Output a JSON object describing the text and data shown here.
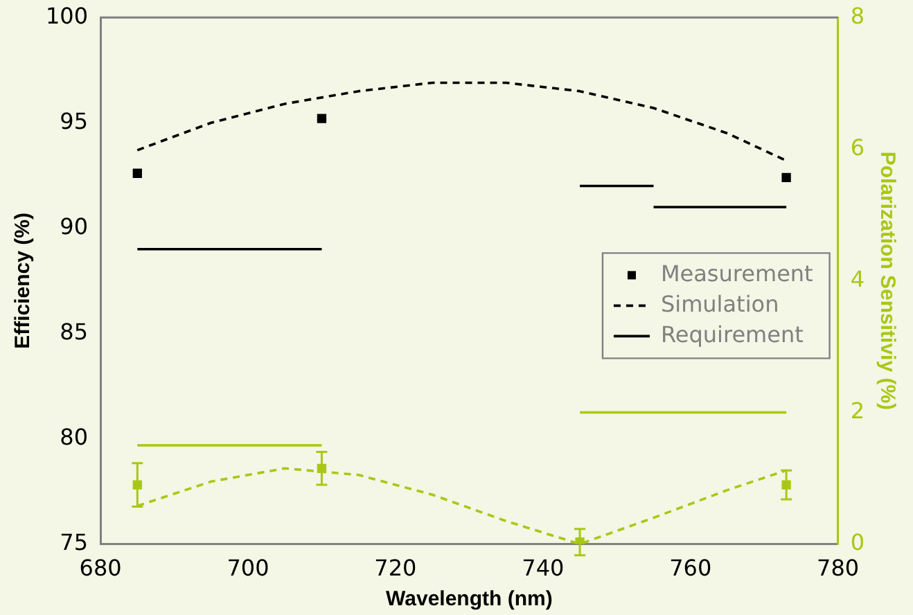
{
  "chart_data": {
    "type": "line",
    "xlabel": "Wavelength (nm)",
    "ylabel": "Efficiency (%)",
    "y2label": "Polarization Sensitiviy (%)",
    "xlim": [
      680,
      780
    ],
    "xticks": [
      680,
      700,
      720,
      740,
      760,
      780
    ],
    "ylim": [
      75,
      100
    ],
    "yticks": [
      75,
      80,
      85,
      90,
      95,
      100
    ],
    "y2lim": [
      0,
      8
    ],
    "y2ticks": [
      0,
      2,
      4,
      6,
      8
    ],
    "grid": false,
    "legend": "right",
    "series": [
      {
        "name": "Measurement",
        "type": "scatter",
        "marker": "square",
        "color": "#000000",
        "x": [
          685,
          710,
          773
        ],
        "values": [
          92.6,
          95.2,
          92.4
        ]
      },
      {
        "name": "Simulation",
        "marker": "none",
        "line_style": "dashed",
        "color": "#000000",
        "x": [
          685,
          695,
          705,
          715,
          725,
          735,
          745,
          755,
          765,
          773
        ],
        "values": [
          93.7,
          95.0,
          95.9,
          96.5,
          96.9,
          96.9,
          96.5,
          95.7,
          94.5,
          93.2
        ]
      },
      {
        "name": "Requirement",
        "marker": "none",
        "line_style": "solid",
        "color": "#000000",
        "x": [
          685,
          710,
          720,
          745,
          755
        ],
        "values": [
          89,
          89,
          null,
          92,
          92
        ]
      },
      {
        "marker": "none",
        "line_style": "solid",
        "color": "#000000",
        "x": [
          755,
          773
        ],
        "values": [
          91,
          91
        ]
      },
      {
        "type": "scatter",
        "marker": "square",
        "axis": "y2",
        "color": "#a8c813",
        "x": [
          685,
          710,
          745,
          773
        ],
        "values": [
          0.9,
          1.15,
          0.03,
          0.9
        ],
        "errors": [
          0.33,
          0.25,
          0.2,
          0.22
        ]
      },
      {
        "marker": "none",
        "axis": "y2",
        "line_style": "dashed",
        "color": "#a8c813",
        "x": [
          685,
          695,
          705,
          715,
          725,
          735,
          745,
          755,
          765,
          773
        ],
        "values": [
          0.58,
          0.95,
          1.15,
          1.05,
          0.75,
          0.35,
          0.0,
          0.4,
          0.82,
          1.12
        ]
      },
      {
        "marker": "none",
        "axis": "y2",
        "line_style": "solid",
        "color": "#a8c813",
        "x": [
          685,
          710,
          720,
          745,
          773
        ],
        "values": [
          1.5,
          1.5,
          null,
          2,
          2
        ]
      }
    ]
  }
}
